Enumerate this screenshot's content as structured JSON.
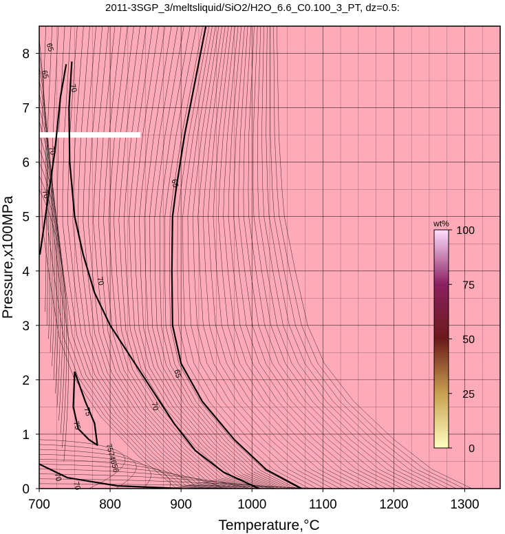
{
  "chart_data": {
    "type": "contour",
    "title": "2011-3SGP_3/meltsliquid/SiO2/H2O_6.6_C0.100_3_PT, dz=0.5:",
    "xlabel": "Temperature,°C",
    "ylabel": "Pressure,x100MPa",
    "xlim": [
      700,
      1350
    ],
    "ylim": [
      0,
      8.5
    ],
    "xticks": [
      700,
      800,
      900,
      1000,
      1100,
      1200,
      1300
    ],
    "yticks": [
      0,
      1,
      2,
      3,
      4,
      5,
      6,
      7,
      8
    ],
    "grid": true,
    "background_fill_color": "#ffaab8",
    "contour_interval": 0.5,
    "major_contours": [
      {
        "level": 65,
        "label": "65",
        "points": [
          [
            935,
            8.5
          ],
          [
            920,
            7.5
          ],
          [
            905,
            6.5
          ],
          [
            893,
            5.5
          ],
          [
            888,
            5.0
          ],
          [
            887,
            4.0
          ],
          [
            888,
            3.0
          ],
          [
            900,
            2.3
          ],
          [
            930,
            1.6
          ],
          [
            975,
            0.9
          ],
          [
            1020,
            0.35
          ],
          [
            1070,
            0.0
          ]
        ]
      },
      {
        "level": 70,
        "label": "70",
        "points": [
          [
            738,
            7.8
          ],
          [
            730,
            7.2
          ],
          [
            722,
            6.2
          ],
          [
            712,
            5.3
          ],
          [
            701,
            4.3
          ]
        ]
      },
      {
        "level": 70,
        "label": "70",
        "points": [
          [
            746,
            7.85
          ],
          [
            742,
            7.0
          ],
          [
            743,
            6.0
          ],
          [
            750,
            5.0
          ],
          [
            762,
            4.3
          ],
          [
            778,
            3.6
          ],
          [
            800,
            3.0
          ],
          [
            830,
            2.4
          ],
          [
            860,
            1.8
          ],
          [
            890,
            1.2
          ],
          [
            920,
            0.7
          ],
          [
            960,
            0.3
          ],
          [
            1010,
            0.0
          ]
        ]
      },
      {
        "level": 70,
        "label": "70",
        "points": [
          [
            700,
            0.45
          ],
          [
            740,
            0.2
          ],
          [
            810,
            0.05
          ],
          [
            900,
            0.0
          ]
        ]
      },
      {
        "level": 75,
        "label": "75",
        "points": [
          [
            750,
            2.15
          ],
          [
            748,
            1.5
          ],
          [
            755,
            1.1
          ],
          [
            770,
            0.9
          ],
          [
            782,
            0.8
          ],
          [
            778,
            1.2
          ],
          [
            765,
            1.6
          ],
          [
            750,
            2.15
          ]
        ]
      }
    ],
    "contour_labels": [
      {
        "text": "65",
        "x": 712,
        "y": 8.1
      },
      {
        "text": "65",
        "x": 705,
        "y": 7.6
      },
      {
        "text": "70",
        "x": 745,
        "y": 7.35
      },
      {
        "text": "70",
        "x": 715,
        "y": 6.2
      },
      {
        "text": "70",
        "x": 706,
        "y": 5.4
      },
      {
        "text": "65",
        "x": 888,
        "y": 5.6
      },
      {
        "text": "70",
        "x": 783,
        "y": 3.8
      },
      {
        "text": "65",
        "x": 892,
        "y": 2.1
      },
      {
        "text": "70",
        "x": 860,
        "y": 1.5
      },
      {
        "text": "75",
        "x": 765,
        "y": 1.4
      },
      {
        "text": "75",
        "x": 750,
        "y": 1.15
      },
      {
        "text": "70",
        "x": 723,
        "y": 0.2
      },
      {
        "text": "70",
        "x": 750,
        "y": 0.04
      },
      {
        "text": "7574656",
        "x": 800,
        "y": 0.55
      }
    ],
    "colorbar": {
      "title": "wt%",
      "min": 0,
      "max": 100,
      "ticks": [
        0,
        25,
        50,
        75,
        100
      ],
      "colors": [
        "#ffffc0",
        "#c8a050",
        "#6a1a1a",
        "#8a2060",
        "#ffe0ff"
      ]
    }
  }
}
